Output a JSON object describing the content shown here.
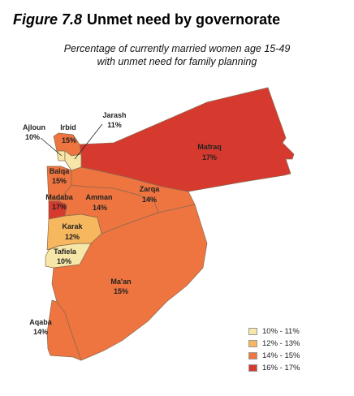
{
  "title": {
    "figure": "Figure 7.8",
    "text": "Unmet need by governorate"
  },
  "subtitle": {
    "line1": "Percentage of currently married women age 15-49",
    "line2": "with unmet need for family planning"
  },
  "colors": {
    "c10_11": "#f6e6a8",
    "c12_13": "#f6b75e",
    "c14_15": "#ee7440",
    "c16_17": "#d63a2e"
  },
  "governorates": [
    {
      "id": "ajloun",
      "name": "Ajloun",
      "value": "10%",
      "class": "c10_11"
    },
    {
      "id": "irbid",
      "name": "Irbid",
      "value": "15%",
      "class": "c14_15"
    },
    {
      "id": "jarash",
      "name": "Jarash",
      "value": "11%",
      "class": "c10_11"
    },
    {
      "id": "mafraq",
      "name": "Mafraq",
      "value": "17%",
      "class": "c16_17"
    },
    {
      "id": "balqa",
      "name": "Balqa",
      "value": "15%",
      "class": "c14_15"
    },
    {
      "id": "zarqa",
      "name": "Zarqa",
      "value": "14%",
      "class": "c14_15"
    },
    {
      "id": "madaba",
      "name": "Madaba",
      "value": "17%",
      "class": "c16_17"
    },
    {
      "id": "amman",
      "name": "Amman",
      "value": "14%",
      "class": "c14_15"
    },
    {
      "id": "karak",
      "name": "Karak",
      "value": "12%",
      "class": "c12_13"
    },
    {
      "id": "tafiela",
      "name": "Tafiela",
      "value": "10%",
      "class": "c10_11"
    },
    {
      "id": "maan",
      "name": "Ma'an",
      "value": "15%",
      "class": "c14_15"
    },
    {
      "id": "aqaba",
      "name": "Aqaba",
      "value": "14%",
      "class": "c14_15"
    }
  ],
  "legend": [
    {
      "label": "10% - 11%",
      "class": "c10_11"
    },
    {
      "label": "12% - 13%",
      "class": "c12_13"
    },
    {
      "label": "14% - 15%",
      "class": "c14_15"
    },
    {
      "label": "16% - 17%",
      "class": "c16_17"
    }
  ]
}
